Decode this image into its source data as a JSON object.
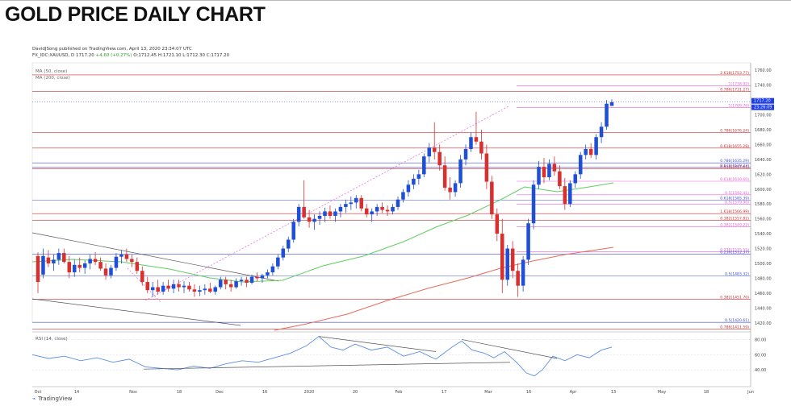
{
  "page": {
    "title": "GOLD PRICE DAILY CHART"
  },
  "header": {
    "published": "DavidJSong published on TradingView.com, April 13, 2020 23:34:07 UTC",
    "symbol": "FX_IDC:XAUUSD, D 1717.20",
    "change": "+4.60 (+0.27%)",
    "ohlc": "O:1712.45 H:1721.10 L:1712.30 C:1717.20"
  },
  "indicators": {
    "ma50": "MA (50, close)",
    "ma200": "MA (200, close)"
  },
  "rsi": {
    "label": "RSI (14, close)",
    "ticks": [
      "80.00",
      "60.00",
      "40.00"
    ]
  },
  "footer": {
    "logo": "TradingView"
  },
  "colors": {
    "up": "#1f4fd6",
    "down": "#d92f2f",
    "ma50": "#5fcf5f",
    "ma200": "#e86a5a",
    "fib_pink": "#e85fd8",
    "fib_red": "#c82f2f",
    "fib_blue": "#3f4fd6",
    "rsi": "#5b8ee0",
    "last_price": "#1f3fe6"
  },
  "chart_data": {
    "type": "candlestick",
    "title": "GOLD PRICE DAILY CHART",
    "ylim": [
      1410,
      1770
    ],
    "yticks": [
      1760,
      1740,
      1720,
      1700,
      1680,
      1660,
      1640,
      1620,
      1600,
      1580,
      1560,
      1540,
      1520,
      1500,
      1480,
      1460,
      1440,
      1420
    ],
    "xticks": [
      "Oct",
      "14",
      "Nov",
      "18",
      "Dec",
      "16",
      "2020",
      "20",
      "Feb",
      "17",
      "Mar",
      "16",
      "Apr",
      "13",
      "May",
      "18",
      "Jun"
    ],
    "last_price": "1717.20",
    "countdown": "23:26:09",
    "levels": [
      {
        "label": "2.618(1753.77)",
        "value": 1753.77,
        "color": "red"
      },
      {
        "label": "1(1738.92)",
        "value": 1738.92,
        "color": "pink"
      },
      {
        "label": "0.786(1731.27)",
        "value": 1731.27,
        "color": "red"
      },
      {
        "label": "1(1709.76)",
        "value": 1709.76,
        "color": "pink"
      },
      {
        "label": "0.786(1676.24)",
        "value": 1676.24,
        "color": "red"
      },
      {
        "label": "0.618(1655.28)",
        "value": 1655.28,
        "color": "red"
      },
      {
        "label": "0.786(1635.29)",
        "value": 1635.29,
        "color": "blue"
      },
      {
        "label": "0.618(1629.23)",
        "value": 1629.23,
        "color": "blue"
      },
      {
        "label": "0.618(1627.61)",
        "value": 1627.61,
        "color": "red"
      },
      {
        "label": "0.618(1610.60)",
        "value": 1610.6,
        "color": "pink"
      },
      {
        "label": "0.5(1592.41)",
        "value": 1592.41,
        "color": "pink"
      },
      {
        "label": "0.618(1585.39)",
        "value": 1585.39,
        "color": "blue"
      },
      {
        "label": "0.5(1579.90)",
        "value": 1579.9,
        "color": "pink"
      },
      {
        "label": "1.618(1566.99)",
        "value": 1566.99,
        "color": "red"
      },
      {
        "label": "0.382(1557.82)",
        "value": 1557.82,
        "color": "red"
      },
      {
        "label": "0.382(1549.22)",
        "value": 1549.22,
        "color": "pink"
      },
      {
        "label": "0.236(1515.55)",
        "value": 1515.55,
        "color": "pink"
      },
      {
        "label": "0.236(1512.37)",
        "value": 1512.37,
        "color": "blue"
      },
      {
        "label": "0.5(1483.32)",
        "value": 1483.32,
        "color": "blue"
      },
      {
        "label": "0.382(1451.70)",
        "value": 1451.7,
        "color": "red"
      },
      {
        "label": "0.5(1420.61)",
        "value": 1420.61,
        "color": "blue"
      },
      {
        "label": "0.786(1411.59)",
        "value": 1411.59,
        "color": "red"
      }
    ],
    "candles_ohlc": [
      [
        1510,
        1515,
        1460,
        1475
      ],
      [
        1485,
        1520,
        1480,
        1510
      ],
      [
        1508,
        1518,
        1495,
        1500
      ],
      [
        1500,
        1512,
        1490,
        1505
      ],
      [
        1505,
        1520,
        1498,
        1514
      ],
      [
        1514,
        1520,
        1500,
        1502
      ],
      [
        1502,
        1510,
        1480,
        1488
      ],
      [
        1488,
        1505,
        1482,
        1498
      ],
      [
        1498,
        1508,
        1488,
        1494
      ],
      [
        1494,
        1504,
        1486,
        1500
      ],
      [
        1500,
        1512,
        1492,
        1506
      ],
      [
        1506,
        1515,
        1498,
        1502
      ],
      [
        1502,
        1508,
        1490,
        1493
      ],
      [
        1493,
        1500,
        1478,
        1484
      ],
      [
        1484,
        1498,
        1480,
        1494
      ],
      [
        1494,
        1514,
        1490,
        1509
      ],
      [
        1509,
        1518,
        1500,
        1512
      ],
      [
        1512,
        1520,
        1502,
        1506
      ],
      [
        1506,
        1512,
        1495,
        1502
      ],
      [
        1502,
        1508,
        1486,
        1490
      ],
      [
        1490,
        1496,
        1470,
        1475
      ],
      [
        1475,
        1482,
        1460,
        1464
      ],
      [
        1464,
        1475,
        1455,
        1468
      ],
      [
        1468,
        1478,
        1458,
        1462
      ],
      [
        1462,
        1475,
        1458,
        1470
      ],
      [
        1470,
        1478,
        1462,
        1466
      ],
      [
        1466,
        1478,
        1460,
        1472
      ],
      [
        1472,
        1478,
        1462,
        1468
      ],
      [
        1468,
        1476,
        1460,
        1470
      ],
      [
        1470,
        1475,
        1462,
        1465
      ],
      [
        1465,
        1472,
        1455,
        1462
      ],
      [
        1462,
        1470,
        1456,
        1464
      ],
      [
        1464,
        1472,
        1458,
        1466
      ],
      [
        1466,
        1474,
        1460,
        1462
      ],
      [
        1462,
        1470,
        1458,
        1468
      ],
      [
        1468,
        1482,
        1465,
        1478
      ],
      [
        1478,
        1482,
        1465,
        1472
      ],
      [
        1472,
        1478,
        1462,
        1468
      ],
      [
        1468,
        1480,
        1466,
        1476
      ],
      [
        1476,
        1482,
        1470,
        1478
      ],
      [
        1478,
        1482,
        1468,
        1474
      ],
      [
        1474,
        1485,
        1472,
        1482
      ],
      [
        1482,
        1488,
        1476,
        1480
      ],
      [
        1480,
        1486,
        1474,
        1484
      ],
      [
        1484,
        1492,
        1480,
        1488
      ],
      [
        1488,
        1500,
        1484,
        1496
      ],
      [
        1496,
        1512,
        1492,
        1508
      ],
      [
        1508,
        1524,
        1504,
        1520
      ],
      [
        1520,
        1536,
        1515,
        1532
      ],
      [
        1532,
        1560,
        1528,
        1556
      ],
      [
        1556,
        1580,
        1550,
        1576
      ],
      [
        1576,
        1612,
        1560,
        1562
      ],
      [
        1562,
        1572,
        1548,
        1556
      ],
      [
        1556,
        1566,
        1545,
        1560
      ],
      [
        1560,
        1570,
        1552,
        1564
      ],
      [
        1564,
        1575,
        1556,
        1570
      ],
      [
        1570,
        1578,
        1560,
        1564
      ],
      [
        1564,
        1574,
        1556,
        1570
      ],
      [
        1570,
        1580,
        1562,
        1576
      ],
      [
        1576,
        1586,
        1568,
        1580
      ],
      [
        1580,
        1590,
        1572,
        1582
      ],
      [
        1582,
        1592,
        1574,
        1588
      ],
      [
        1588,
        1592,
        1570,
        1574
      ],
      [
        1574,
        1580,
        1562,
        1566
      ],
      [
        1566,
        1574,
        1556,
        1570
      ],
      [
        1570,
        1580,
        1564,
        1576
      ],
      [
        1576,
        1582,
        1568,
        1572
      ],
      [
        1572,
        1578,
        1564,
        1570
      ],
      [
        1570,
        1580,
        1566,
        1576
      ],
      [
        1576,
        1590,
        1572,
        1586
      ],
      [
        1586,
        1600,
        1582,
        1596
      ],
      [
        1596,
        1612,
        1590,
        1606
      ],
      [
        1606,
        1620,
        1600,
        1614
      ],
      [
        1614,
        1626,
        1606,
        1620
      ],
      [
        1620,
        1648,
        1616,
        1644
      ],
      [
        1644,
        1662,
        1636,
        1656
      ],
      [
        1656,
        1690,
        1640,
        1650
      ],
      [
        1650,
        1660,
        1625,
        1632
      ],
      [
        1632,
        1644,
        1598,
        1602
      ],
      [
        1602,
        1616,
        1586,
        1596
      ],
      [
        1596,
        1612,
        1590,
        1608
      ],
      [
        1608,
        1646,
        1602,
        1640
      ],
      [
        1640,
        1660,
        1632,
        1654
      ],
      [
        1654,
        1676,
        1650,
        1670
      ],
      [
        1670,
        1704,
        1660,
        1664
      ],
      [
        1664,
        1680,
        1640,
        1648
      ],
      [
        1648,
        1660,
        1600,
        1610
      ],
      [
        1610,
        1618,
        1560,
        1566
      ],
      [
        1566,
        1574,
        1530,
        1540
      ],
      [
        1540,
        1560,
        1460,
        1478
      ],
      [
        1478,
        1525,
        1470,
        1520
      ],
      [
        1520,
        1530,
        1480,
        1490
      ],
      [
        1490,
        1500,
        1455,
        1470
      ],
      [
        1470,
        1510,
        1462,
        1505
      ],
      [
        1505,
        1560,
        1498,
        1554
      ],
      [
        1554,
        1612,
        1546,
        1606
      ],
      [
        1606,
        1638,
        1600,
        1630
      ],
      [
        1630,
        1642,
        1608,
        1616
      ],
      [
        1616,
        1640,
        1612,
        1634
      ],
      [
        1634,
        1644,
        1618,
        1624
      ],
      [
        1624,
        1632,
        1600,
        1604
      ],
      [
        1604,
        1615,
        1572,
        1580
      ],
      [
        1580,
        1612,
        1576,
        1608
      ],
      [
        1608,
        1624,
        1602,
        1620
      ],
      [
        1620,
        1650,
        1614,
        1646
      ],
      [
        1646,
        1660,
        1640,
        1654
      ],
      [
        1654,
        1662,
        1642,
        1646
      ],
      [
        1646,
        1674,
        1640,
        1670
      ],
      [
        1670,
        1690,
        1662,
        1684
      ],
      [
        1684,
        1720,
        1680,
        1715
      ],
      [
        1712,
        1721,
        1712,
        1717
      ]
    ]
  }
}
